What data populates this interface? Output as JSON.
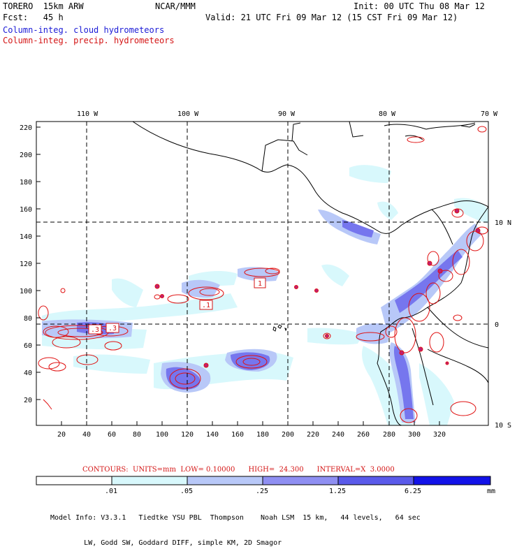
{
  "header": {
    "model": "TORERO  15km ARW",
    "center": "NCAR/MMM",
    "init": "Init: 00 UTC Thu 08 Mar 12",
    "fcst": "Fcst:   45 h",
    "valid": "Valid: 21 UTC Fri 09 Mar 12 (15 CST Fri 09 Mar 12)",
    "field_cloud": "Column-integ. cloud hydrometeors",
    "field_precip": "Column-integ. precip. hydrometeors"
  },
  "colors": {
    "cloud_text": "#1b1bd6",
    "precip_text": "#d41414",
    "contour": "#e01010",
    "shade_1": "#d8f8fc",
    "shade_2": "#b8c8f8",
    "shade_3": "#8f8ff2",
    "shade_4": "#6a6aea",
    "shade_5": "#3b3be6",
    "shade_6": "#1212e8"
  },
  "map": {
    "top_lon_labels": [
      "110 W",
      "100 W",
      "90 W",
      "80 W",
      "70 W"
    ],
    "right_lat_labels": [
      "10 N",
      "0",
      "10 S"
    ],
    "left_y_ticks": [
      "220",
      "200",
      "180",
      "160",
      "140",
      "120",
      "100",
      "80",
      "60",
      "40",
      "20"
    ],
    "bottom_x_ticks": [
      "20",
      "40",
      "60",
      "80",
      "100",
      "120",
      "140",
      "160",
      "180",
      "200",
      "220",
      "240",
      "260",
      "280",
      "300",
      "320"
    ],
    "boxed_labels": [
      "1",
      ".1",
      ".3",
      ".3"
    ]
  },
  "contours_info": {
    "text": "CONTOURS:  UNITS=mm  LOW= 0.10000      HIGH=  24.300      INTERVAL=X  3.0000"
  },
  "legend": {
    "labels": [
      ".01",
      ".05",
      ".25",
      "1.25",
      "6.25",
      "mm"
    ]
  },
  "model_info": {
    "line1": "Model Info: V3.3.1   Tiedtke YSU PBL  Thompson    Noah LSM  15 km,   44 levels,   64 sec",
    "line2": "        LW, Godd SW, Goddard DIFF, simple KM, 2D Smagor"
  }
}
